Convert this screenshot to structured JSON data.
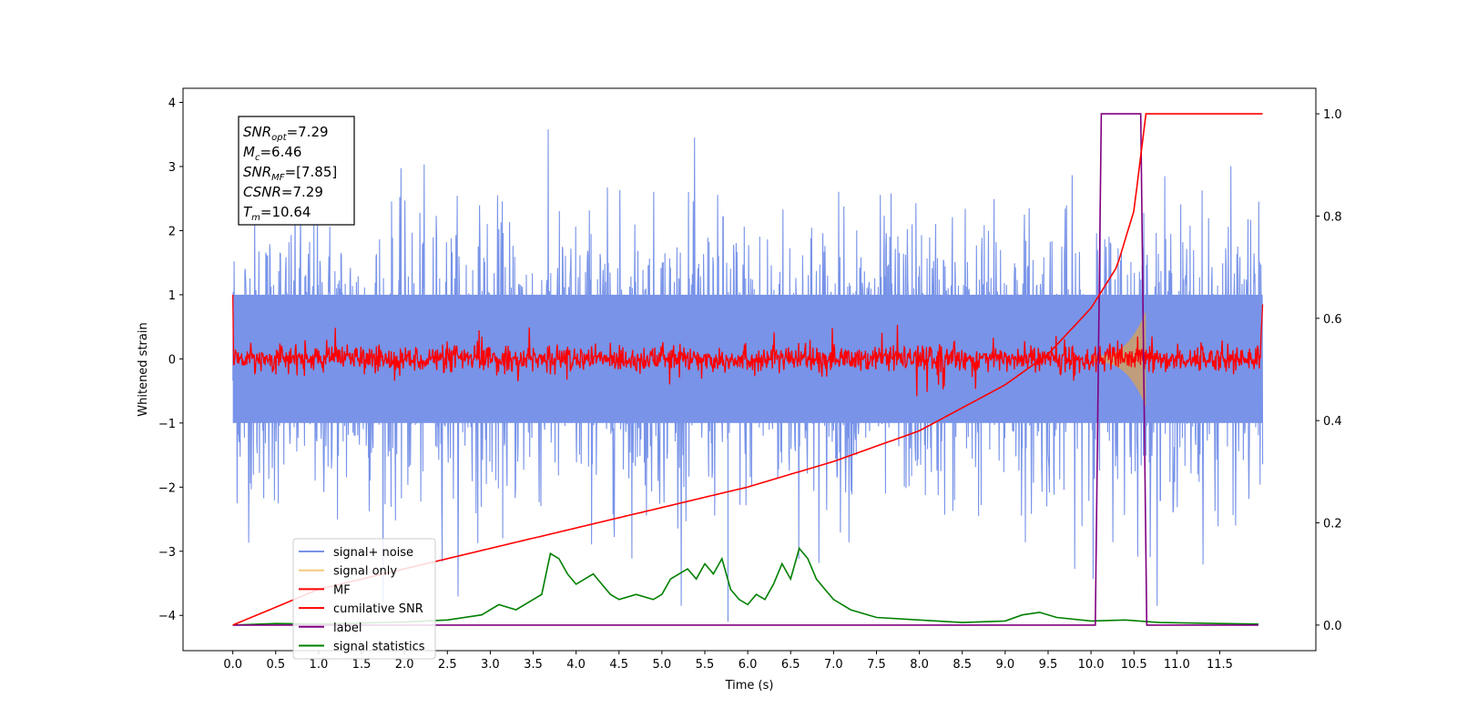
{
  "chart_data": {
    "type": "line",
    "xlabel": "Time (s)",
    "ylabel": "Whitened strain",
    "xlim": [
      -0.58,
      12.62
    ],
    "ylim": [
      -4.55,
      4.22
    ],
    "y2lim": [
      -0.05,
      1.05
    ],
    "x_ticks": [
      0.0,
      0.5,
      1.0,
      1.5,
      2.0,
      2.5,
      3.0,
      3.5,
      4.0,
      4.5,
      5.0,
      5.5,
      6.0,
      6.5,
      7.0,
      7.5,
      8.0,
      8.5,
      9.0,
      9.5,
      10.0,
      10.5,
      11.0,
      11.5
    ],
    "x_tick_labels": [
      "0.0",
      "0.5",
      "1.0",
      "1.5",
      "2.0",
      "2.5",
      "3.0",
      "3.5",
      "4.0",
      "4.5",
      "5.0",
      "5.5",
      "6.0",
      "6.5",
      "7.0",
      "7.5",
      "8.0",
      "8.5",
      "9.0",
      "9.5",
      "10.0",
      "10.5",
      "11.0",
      "11.5"
    ],
    "y_ticks": [
      -4,
      -3,
      -2,
      -1,
      0,
      1,
      2,
      3,
      4
    ],
    "y_tick_labels": [
      "−4",
      "−3",
      "−2",
      "−1",
      "0",
      "1",
      "2",
      "3",
      "4"
    ],
    "y2_ticks": [
      0.0,
      0.2,
      0.4,
      0.6,
      0.8,
      1.0
    ],
    "y2_tick_labels": [
      "0.0",
      "0.2",
      "0.4",
      "0.6",
      "0.8",
      "1.0"
    ],
    "grid": false,
    "legend_position": "bottom-left",
    "annotation": [
      {
        "base": "SNR",
        "sub": "opt",
        "value": "=7.29"
      },
      {
        "base": "M",
        "sub": "c",
        "value": "=6.46"
      },
      {
        "base": "SNR",
        "sub": "MF",
        "value": "=[7.85]"
      },
      {
        "base": "CSNR",
        "sub": "",
        "value": "=7.29"
      },
      {
        "base": "T",
        "sub": "m",
        "value": "=10.64"
      }
    ],
    "series": [
      {
        "name": "signal+ noise",
        "color": "#7893e8",
        "axis": "left",
        "description_values": {
          "x_range": [
            0.0,
            12.0
          ],
          "noise_amplitude_typical": 1.6,
          "noise_peak": 3.85
        }
      },
      {
        "name": "signal only",
        "color": "#f5c97a",
        "axis": "left",
        "description_values": {
          "chirp_start": 10.0,
          "chirp_end": 10.64,
          "peak_amplitude": 0.7
        }
      },
      {
        "name": "MF",
        "color": "#ff0000",
        "axis": "left",
        "description_values": {
          "x_range": [
            0.0,
            12.0
          ],
          "amplitude_typical": 0.15,
          "edge_values": [
            1.0,
            0.85
          ]
        }
      },
      {
        "name": "cumilative SNR",
        "color": "#ff0000",
        "axis": "right",
        "x": [
          0.0,
          1.0,
          2.0,
          3.0,
          4.0,
          5.0,
          6.0,
          7.0,
          8.0,
          9.0,
          9.5,
          10.0,
          10.3,
          10.5,
          10.64,
          12.0
        ],
        "y": [
          0.0,
          0.07,
          0.11,
          0.15,
          0.19,
          0.23,
          0.27,
          0.32,
          0.38,
          0.47,
          0.53,
          0.62,
          0.7,
          0.81,
          1.0,
          1.0
        ]
      },
      {
        "name": "label",
        "color": "#800080",
        "axis": "right",
        "x": [
          0.0,
          10.05,
          10.12,
          10.58,
          10.65,
          11.95
        ],
        "y": [
          0.0,
          0.0,
          1.0,
          1.0,
          0.0,
          0.0
        ]
      },
      {
        "name": "signal statistics",
        "color": "#008000",
        "axis": "right",
        "x": [
          0.0,
          0.5,
          1.0,
          1.5,
          2.0,
          2.5,
          2.9,
          3.1,
          3.3,
          3.5,
          3.6,
          3.7,
          3.8,
          3.9,
          4.0,
          4.1,
          4.2,
          4.3,
          4.4,
          4.5,
          4.7,
          4.9,
          5.0,
          5.1,
          5.2,
          5.3,
          5.4,
          5.5,
          5.6,
          5.7,
          5.8,
          5.9,
          6.0,
          6.1,
          6.2,
          6.3,
          6.4,
          6.5,
          6.6,
          6.7,
          6.8,
          6.9,
          7.0,
          7.2,
          7.5,
          8.0,
          8.5,
          9.0,
          9.2,
          9.4,
          9.6,
          10.0,
          10.4,
          10.8,
          11.5,
          11.95
        ],
        "y": [
          0.0,
          0.003,
          0.002,
          0.004,
          0.006,
          0.01,
          0.02,
          0.04,
          0.03,
          0.05,
          0.06,
          0.14,
          0.13,
          0.1,
          0.08,
          0.09,
          0.1,
          0.08,
          0.06,
          0.05,
          0.06,
          0.05,
          0.06,
          0.09,
          0.1,
          0.11,
          0.09,
          0.12,
          0.1,
          0.13,
          0.07,
          0.05,
          0.04,
          0.06,
          0.05,
          0.08,
          0.12,
          0.09,
          0.15,
          0.13,
          0.09,
          0.07,
          0.05,
          0.03,
          0.015,
          0.01,
          0.005,
          0.008,
          0.02,
          0.025,
          0.015,
          0.008,
          0.01,
          0.005,
          0.003,
          0.002
        ]
      }
    ]
  }
}
